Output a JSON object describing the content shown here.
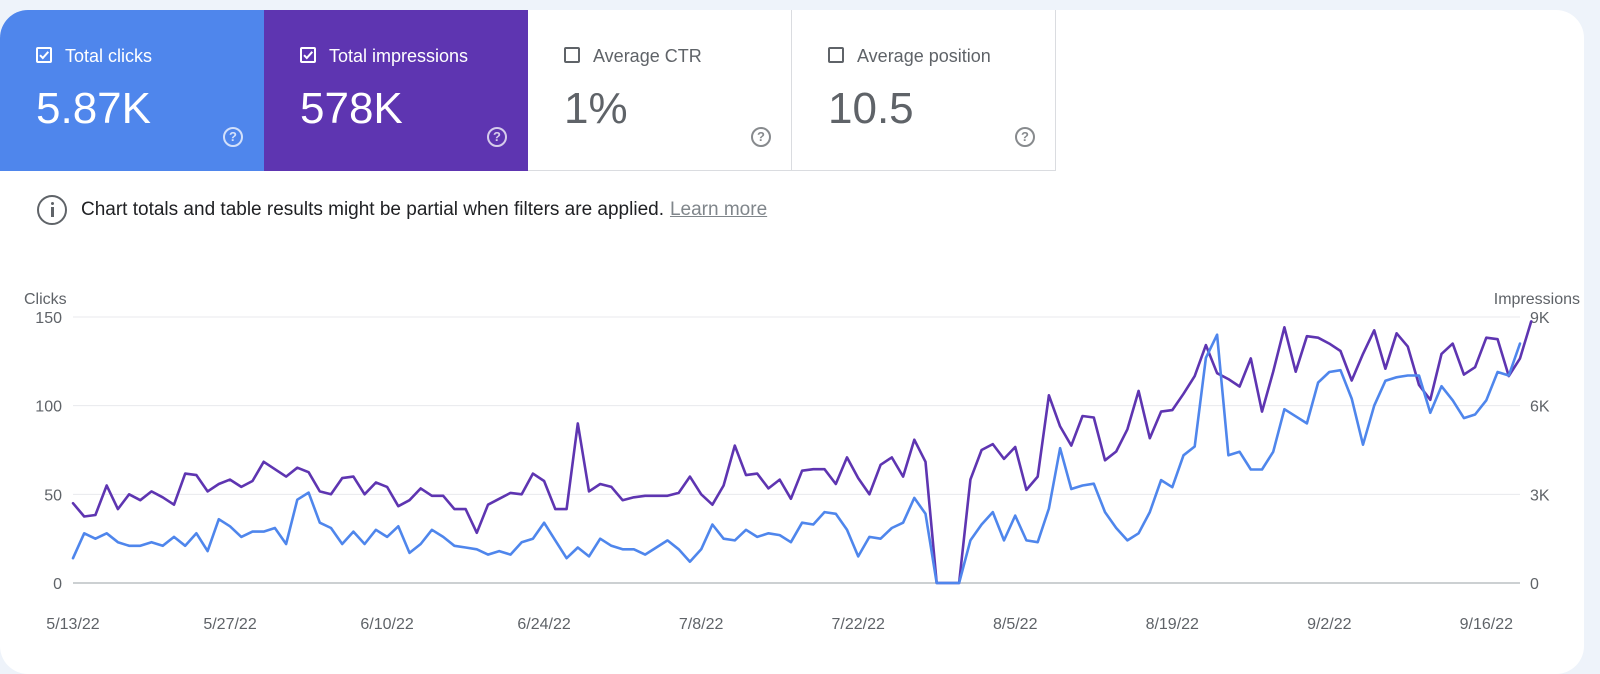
{
  "metrics": [
    {
      "label": "Total clicks",
      "value": "5.87K",
      "checked": true
    },
    {
      "label": "Total impressions",
      "value": "578K",
      "checked": true
    },
    {
      "label": "Average CTR",
      "value": "1%",
      "checked": false
    },
    {
      "label": "Average position",
      "value": "10.5",
      "checked": false
    }
  ],
  "notice": {
    "text": "Chart totals and table results might be partial when filters are applied.",
    "link": "Learn more"
  },
  "colors": {
    "clicks": "#4f86ec",
    "impressions": "#5e35b1"
  },
  "chart_data": {
    "type": "line",
    "title": "",
    "y_left_label": "Clicks",
    "y_right_label": "Impressions",
    "y_left_ticks": [
      "0",
      "50",
      "100",
      "150"
    ],
    "y_right_ticks": [
      "0",
      "3K",
      "6K",
      "9K"
    ],
    "y_left_range": [
      0,
      150
    ],
    "y_right_range": [
      0,
      9000
    ],
    "x_ticks": [
      {
        "label": "5/13/22",
        "day": 0
      },
      {
        "label": "5/27/22",
        "day": 14
      },
      {
        "label": "6/10/22",
        "day": 28
      },
      {
        "label": "6/24/22",
        "day": 42
      },
      {
        "label": "7/8/22",
        "day": 56
      },
      {
        "label": "7/22/22",
        "day": 70
      },
      {
        "label": "8/5/22",
        "day": 84
      },
      {
        "label": "8/19/22",
        "day": 98
      },
      {
        "label": "9/2/22",
        "day": 112
      },
      {
        "label": "9/16/22",
        "day": 126
      }
    ],
    "x_range": [
      0,
      129
    ],
    "grid": true,
    "series": [
      {
        "name": "Clicks",
        "axis": "left",
        "values": [
          14,
          28,
          25,
          28,
          23,
          21,
          21,
          23,
          21,
          26,
          21,
          28,
          18,
          36,
          32,
          26,
          29,
          29,
          31,
          22,
          47,
          51,
          34,
          31,
          22,
          29,
          22,
          30,
          26,
          32,
          17,
          22,
          30,
          26,
          21,
          20,
          19,
          16,
          18,
          16,
          23,
          25,
          34,
          24,
          14,
          20,
          15,
          25,
          21,
          19,
          19,
          16,
          20,
          24,
          19,
          12,
          19,
          33,
          25,
          24,
          30,
          26,
          28,
          27,
          23,
          34,
          33,
          40,
          39,
          30,
          15,
          26,
          25,
          31,
          34,
          48,
          39,
          0,
          0,
          0,
          24,
          33,
          40,
          24,
          38,
          24,
          23,
          42,
          76,
          53,
          55,
          56,
          40,
          31,
          24,
          28,
          40,
          58,
          54,
          72,
          77,
          127,
          140,
          72,
          74,
          64,
          64,
          74,
          98,
          94,
          90,
          113,
          119,
          120,
          104,
          78,
          100,
          114,
          116,
          117,
          117,
          96,
          111,
          103,
          93,
          95,
          103,
          119,
          117,
          135
        ]
      },
      {
        "name": "Impressions",
        "axis": "right",
        "values": [
          2700,
          2250,
          2300,
          3300,
          2500,
          3000,
          2800,
          3100,
          2900,
          2650,
          3700,
          3650,
          3100,
          3350,
          3500,
          3250,
          3450,
          4100,
          3850,
          3600,
          3900,
          3750,
          3100,
          3000,
          3550,
          3600,
          3000,
          3400,
          3250,
          2600,
          2800,
          3200,
          2950,
          2950,
          2500,
          2500,
          1700,
          2650,
          2850,
          3050,
          3000,
          3700,
          3450,
          2500,
          2500,
          5400,
          3100,
          3350,
          3250,
          2800,
          2900,
          2950,
          2950,
          2950,
          3050,
          3600,
          3000,
          2650,
          3300,
          4650,
          3650,
          3700,
          3200,
          3500,
          2850,
          3800,
          3850,
          3850,
          3350,
          4250,
          3550,
          3000,
          4000,
          4250,
          3600,
          4850,
          4100,
          0,
          0,
          0,
          3500,
          4500,
          4700,
          4200,
          4600,
          3150,
          3600,
          6350,
          5300,
          4650,
          5650,
          5600,
          4150,
          4450,
          5200,
          6500,
          4900,
          5800,
          5850,
          6400,
          7000,
          8050,
          7100,
          6900,
          6650,
          7600,
          5800,
          7150,
          8650,
          7150,
          8350,
          8300,
          8100,
          7850,
          6850,
          7750,
          8550,
          7250,
          8450,
          8000,
          6700,
          6200,
          7750,
          8100,
          7050,
          7300,
          8300,
          8250,
          7000,
          7600,
          8850
        ]
      }
    ]
  }
}
